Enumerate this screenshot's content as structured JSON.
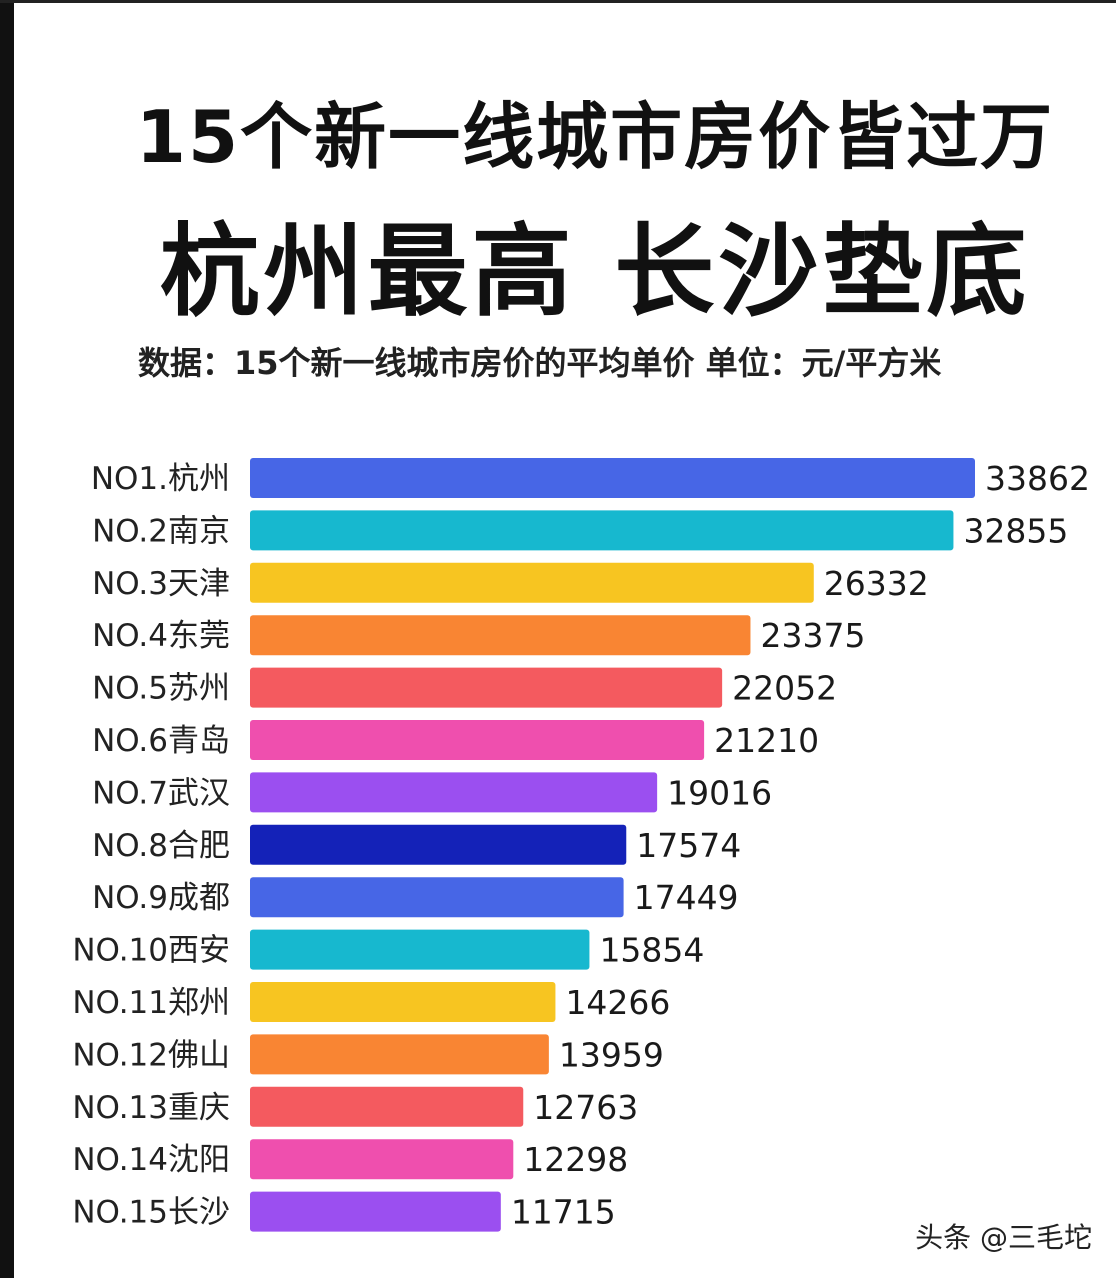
{
  "header": {
    "title_line1": "15个新一线城市房价皆过万",
    "title_line2": "杭州最高  长沙垫底",
    "subtitle": "数据：15个新一线城市房价的平均单价  单位：元/平方米"
  },
  "watermark": "头条 @三毛坨",
  "chart_data": {
    "type": "bar",
    "orientation": "horizontal",
    "title": "15个新一线城市房价皆过万",
    "unit": "元/平方米",
    "categories": [
      "NO1.杭州",
      "NO.2南京",
      "NO.3天津",
      "NO.4东莞",
      "NO.5苏州",
      "NO.6青岛",
      "NO.7武汉",
      "NO.8合肥",
      "NO.9成都",
      "NO.10西安",
      "NO.11郑州",
      "NO.12佛山",
      "NO.13重庆",
      "NO.14沈阳",
      "NO.15长沙"
    ],
    "values": [
      33862,
      32855,
      26332,
      23375,
      22052,
      21210,
      19016,
      17574,
      17449,
      15854,
      14266,
      13959,
      12763,
      12298,
      11715
    ],
    "colors": [
      "#4766e6",
      "#17b8cf",
      "#f7c521",
      "#f98533",
      "#f45a5f",
      "#ef4fae",
      "#9b4ff0",
      "#1422b8",
      "#4766e6",
      "#17b8cf",
      "#f7c521",
      "#f98533",
      "#f45a5f",
      "#ef4fae",
      "#9b4ff0"
    ],
    "xlim": [
      0,
      33862
    ]
  }
}
